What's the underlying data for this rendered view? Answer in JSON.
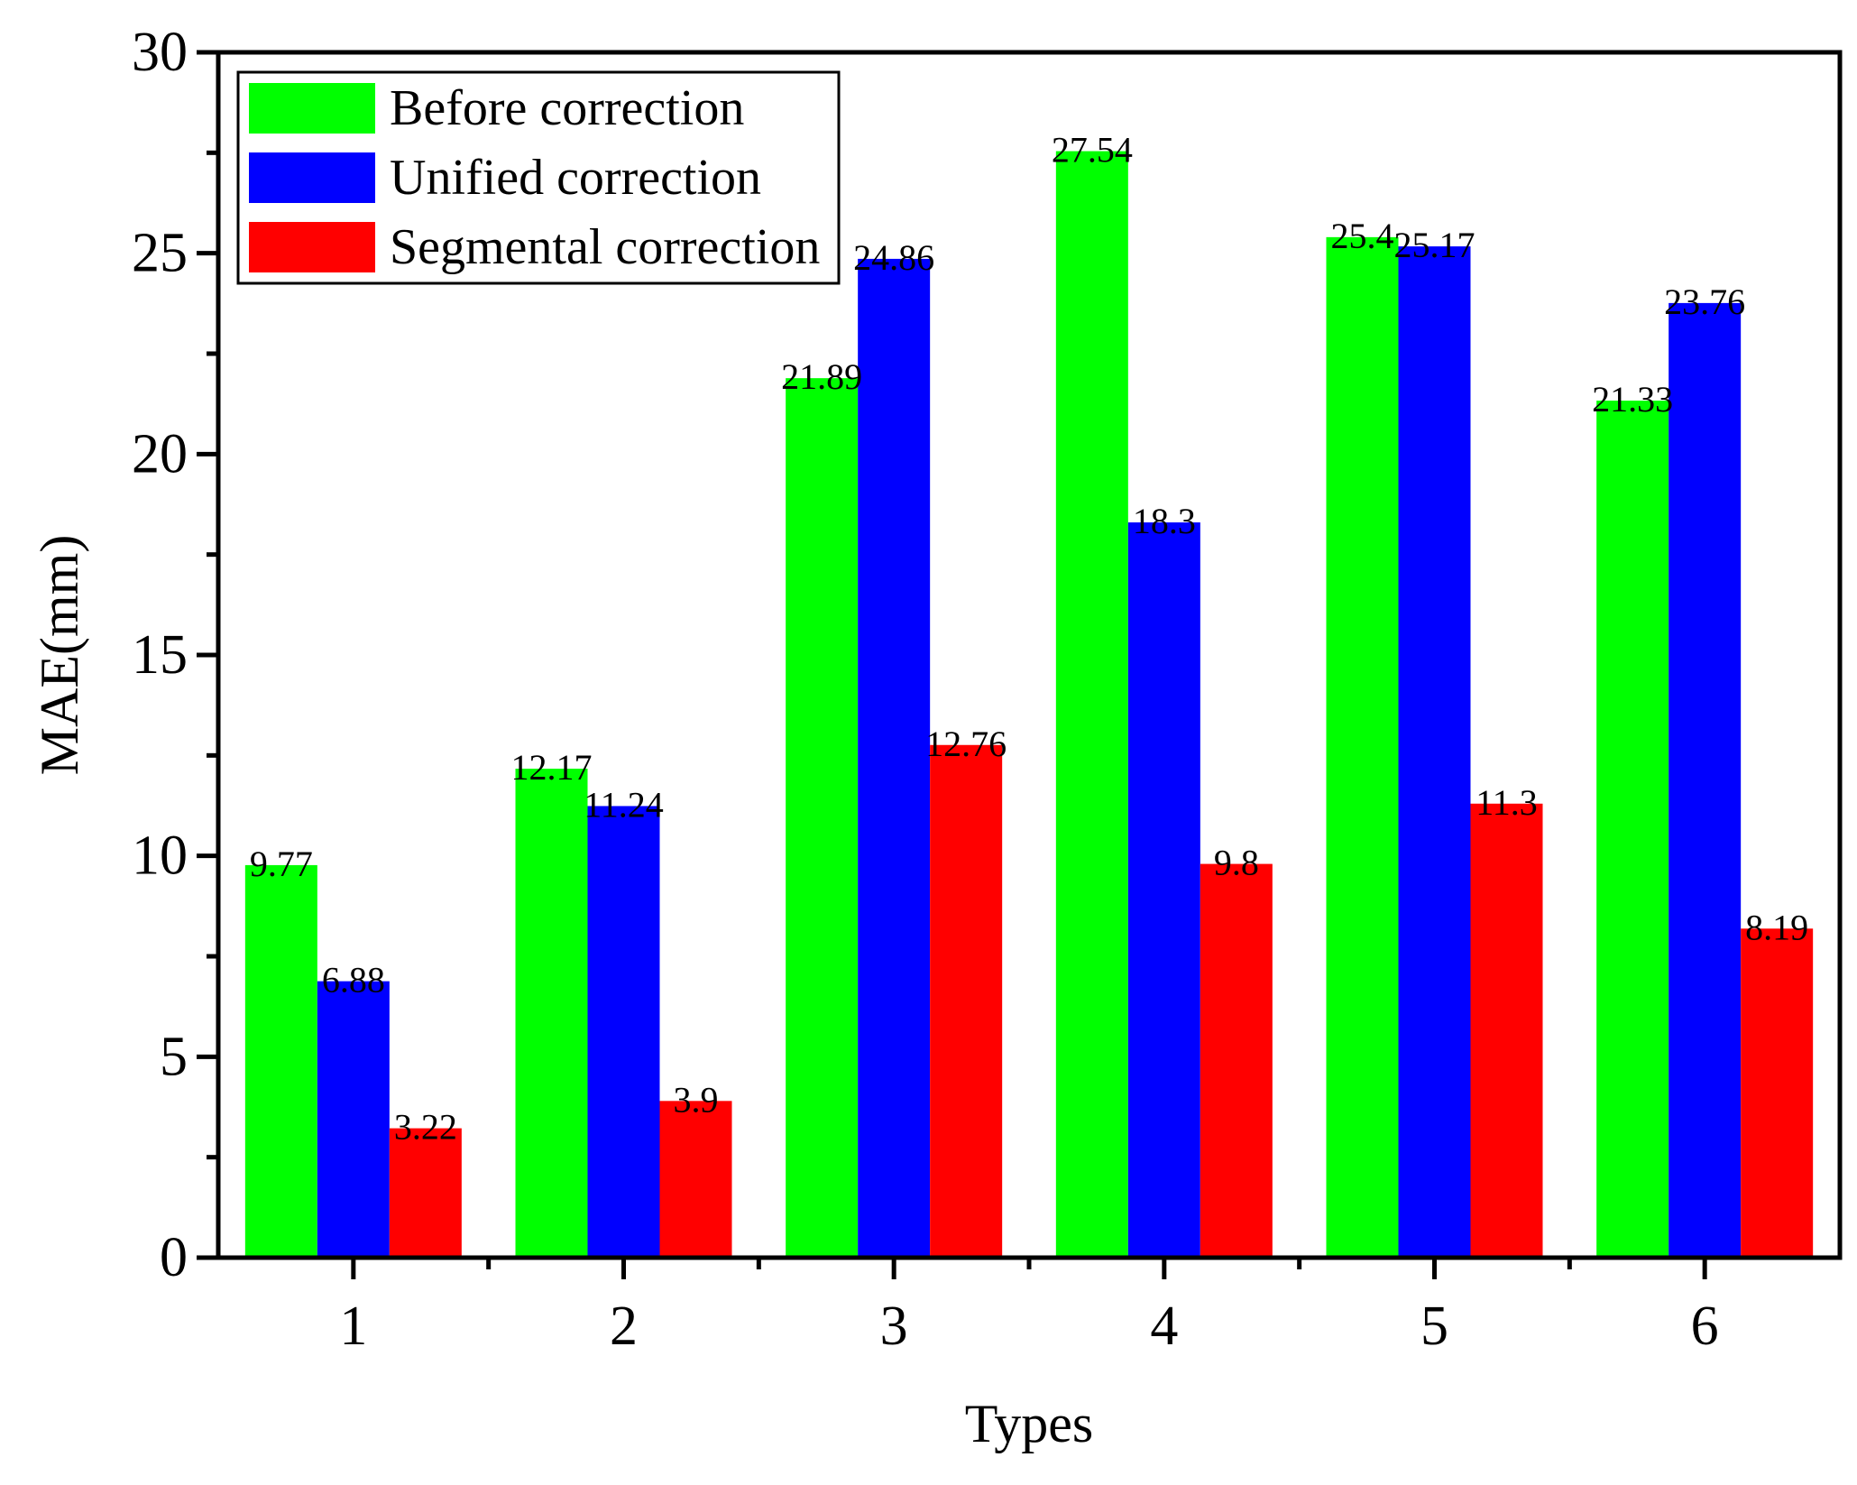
{
  "chart_data": {
    "type": "bar",
    "title": "",
    "xlabel": "Types",
    "ylabel": "MAE(mm)",
    "categories": [
      "1",
      "2",
      "3",
      "4",
      "5",
      "6"
    ],
    "ylim": [
      0,
      30
    ],
    "yticks": [
      0,
      5,
      10,
      15,
      20,
      25,
      30
    ],
    "grid": false,
    "legend_position": "top-left",
    "series": [
      {
        "name": "Before correction",
        "color": "#00ff00",
        "values": [
          9.77,
          12.17,
          21.89,
          27.54,
          25.4,
          21.33
        ],
        "labels": [
          "9.77",
          "12.17",
          "21.89",
          "27.54",
          "25.4",
          "21.33"
        ]
      },
      {
        "name": "Unified correction",
        "color": "#0000ff",
        "values": [
          6.88,
          11.24,
          24.86,
          18.3,
          25.17,
          23.76
        ],
        "labels": [
          "6.88",
          "11.24",
          "24.86",
          "18.3",
          "25.17",
          "23.76"
        ]
      },
      {
        "name": "Segmental correction",
        "color": "#ff0000",
        "values": [
          3.22,
          3.9,
          12.76,
          9.8,
          11.3,
          8.19
        ],
        "labels": [
          "3.22",
          "3.9",
          "12.76",
          "9.8",
          "11.3",
          "8.19"
        ]
      }
    ]
  }
}
